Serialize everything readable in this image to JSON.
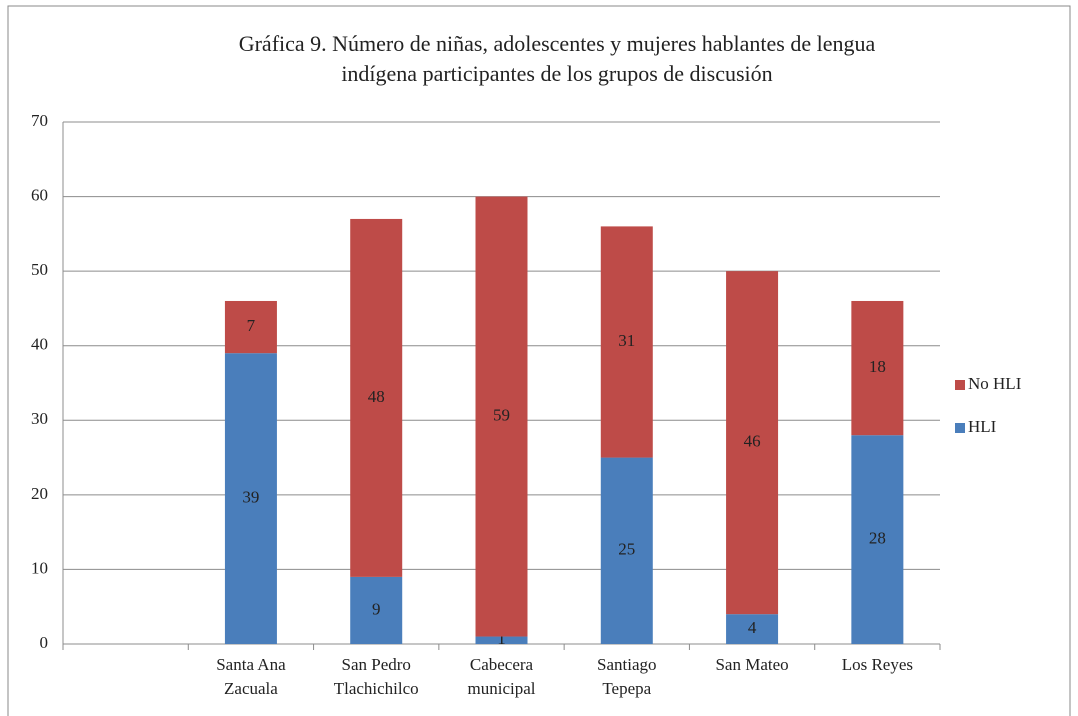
{
  "chart_data": {
    "type": "stacked_bar",
    "title": [
      "Gráfica 9. Número de niñas, adolescentes y mujeres  hablantes de lengua",
      "indígena  participantes de los grupos de discusión"
    ],
    "categories": [
      null,
      [
        "Santa Ana",
        "Zacuala"
      ],
      [
        "San Pedro",
        "Tlachichilco"
      ],
      [
        "Cabecera",
        "municipal"
      ],
      [
        "Santiago",
        "Tepepa"
      ],
      [
        "San Mateo"
      ],
      [
        "Los Reyes"
      ]
    ],
    "series": [
      {
        "name": "HLI",
        "color": "#4a7ebb",
        "values": [
          null,
          39,
          9,
          1,
          25,
          4,
          28
        ]
      },
      {
        "name": "No HLI",
        "color": "#be4b48",
        "values": [
          null,
          7,
          48,
          59,
          31,
          46,
          18
        ]
      }
    ],
    "ylim": [
      0,
      70
    ],
    "yticks": [
      0,
      10,
      20,
      30,
      40,
      50,
      60,
      70
    ],
    "grid": true,
    "legend": "right"
  }
}
